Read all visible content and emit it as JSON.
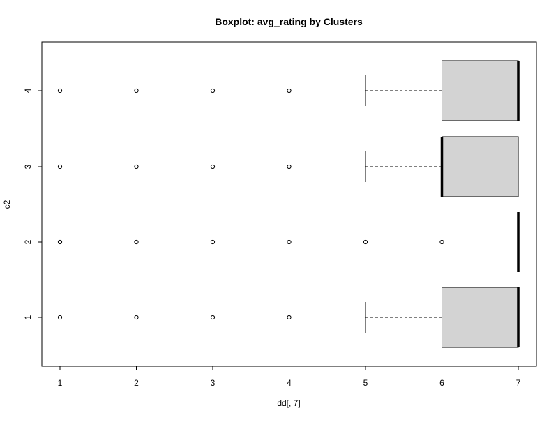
{
  "chart_data": {
    "type": "boxplot",
    "orientation": "horizontal",
    "title": "Boxplot: avg_rating by Clusters",
    "xlabel": "dd[, 7]",
    "ylabel": "c2",
    "xlim": [
      1,
      7
    ],
    "x_ticks": [
      1,
      2,
      3,
      4,
      5,
      6,
      7
    ],
    "grid": false,
    "legend": "none",
    "box_fill": "#d3d3d3",
    "categories": [
      "1",
      "2",
      "3",
      "4"
    ],
    "boxes": [
      {
        "name": "1",
        "whisker_low": 5,
        "q1": 6,
        "median": 7,
        "q3": 7,
        "whisker_high": 7,
        "outliers": [
          1,
          2,
          3,
          4
        ]
      },
      {
        "name": "2",
        "whisker_low": 7,
        "q1": 7,
        "median": 7,
        "q3": 7,
        "whisker_high": 7,
        "outliers": [
          1,
          2,
          3,
          4,
          5,
          6
        ]
      },
      {
        "name": "3",
        "whisker_low": 5,
        "q1": 6,
        "median": 6,
        "q3": 7,
        "whisker_high": 7,
        "outliers": [
          1,
          2,
          3,
          4
        ]
      },
      {
        "name": "4",
        "whisker_low": 5,
        "q1": 6,
        "median": 7,
        "q3": 7,
        "whisker_high": 7,
        "outliers": [
          1,
          2,
          3,
          4
        ]
      }
    ]
  }
}
